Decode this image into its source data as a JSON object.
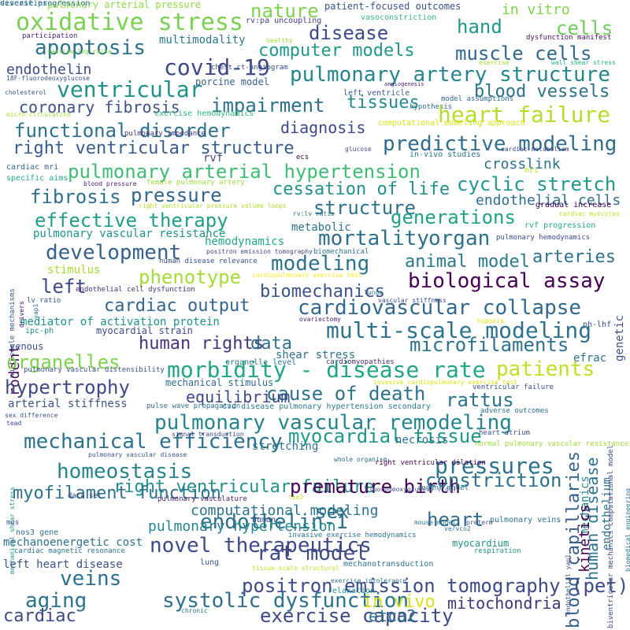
{
  "words": [
    {
      "text": "pulmonary arterial pressure",
      "color": "#90d743"
    },
    {
      "text": "nature",
      "color": "#7fd34e"
    },
    {
      "text": "patient-focused outcomes",
      "color": "#3b528b"
    },
    {
      "text": "in vitro",
      "color": "#7fd34e"
    },
    {
      "text": "oxidative stress",
      "color": "#7ad151"
    },
    {
      "text": "disease",
      "color": "#3e4989"
    },
    {
      "text": "hand",
      "color": "#1f978b"
    },
    {
      "text": "cells",
      "color": "#6ccd5a"
    },
    {
      "text": "rv:pa uncoupling",
      "color": "#453882"
    },
    {
      "text": "vasoconstriction",
      "color": "#35b779"
    },
    {
      "text": "participation",
      "color": "#481f70"
    },
    {
      "text": "healthy",
      "color": "#a2da37"
    },
    {
      "text": "dysfunction manifest",
      "color": "#470e61"
    },
    {
      "text": "multimodality",
      "color": "#2a788e"
    },
    {
      "text": "apoptosis",
      "color": "#2c728e"
    },
    {
      "text": "computer models",
      "color": "#1f988b"
    },
    {
      "text": "muscle cells",
      "color": "#31688e"
    },
    {
      "text": "passive leg raise",
      "color": "#86d549"
    },
    {
      "text": "exercise",
      "color": "#a5db36"
    },
    {
      "text": "wall shear stress",
      "color": "#26ad81"
    },
    {
      "text": "endothelin",
      "color": "#3e4989"
    },
    {
      "text": "covid-19",
      "color": "#3e4989"
    },
    {
      "text": "pulmonary artery structure",
      "color": "#25858e"
    },
    {
      "text": "18F-fluorodeoxyglucose",
      "color": "#3b528b"
    },
    {
      "text": "chest ct-angiogram",
      "color": "#3e4989"
    },
    {
      "text": "angiogenesis",
      "color": "#482173"
    },
    {
      "text": "ventricular",
      "color": "#21918c"
    },
    {
      "text": "porcine model",
      "color": "#355f8d"
    },
    {
      "text": "cholesterol",
      "color": "#3b528b"
    },
    {
      "text": "left ventricle",
      "color": "#38598c"
    },
    {
      "text": "blood vessels",
      "color": "#2c728e"
    },
    {
      "text": "impairment",
      "color": "#2c728e"
    },
    {
      "text": "tissues",
      "color": "#23898e"
    },
    {
      "text": "model assumptions",
      "color": "#31688e"
    },
    {
      "text": "coronary fibrosis",
      "color": "#3b528b"
    },
    {
      "text": "hypothesis",
      "color": "#2c728e"
    },
    {
      "text": "heart failure",
      "color": "#b5de2b"
    },
    {
      "text": "micro-circulation",
      "color": "#a5db36"
    },
    {
      "text": "exercise hemodynamics",
      "color": "#31b57b"
    },
    {
      "text": "diagnosis",
      "color": "#3f4788"
    },
    {
      "text": "computational modeling approach",
      "color": "#d8e219"
    },
    {
      "text": "functional disorder",
      "color": "#2d718e"
    },
    {
      "text": "predictive modeling",
      "color": "#2f6c8e"
    },
    {
      "text": "pulmonary impedance",
      "color": "#46327e"
    },
    {
      "text": "right ventricular structure",
      "color": "#365c8d"
    },
    {
      "text": "glucose",
      "color": "#3e4989"
    },
    {
      "text": "cardiac metabolism",
      "color": "#3f4788"
    },
    {
      "text": "in-vivo studies",
      "color": "#2c728e"
    },
    {
      "text": "ecs",
      "color": "#440154"
    },
    {
      "text": "rvf",
      "color": "#3f4788"
    },
    {
      "text": "crosslink",
      "color": "#2c728e"
    },
    {
      "text": "cardiac mri",
      "color": "#33638d"
    },
    {
      "text": "pulmonary arterial hypertension",
      "color": "#3dbc74"
    },
    {
      "text": "mri",
      "color": "#b8de29"
    },
    {
      "text": "specific aims",
      "color": "#22a884"
    },
    {
      "text": "blood pressure",
      "color": "#481f70"
    },
    {
      "text": "female pulmonary artery",
      "color": "#9bd93c"
    },
    {
      "text": "cyclic stretch",
      "color": "#1f988b"
    },
    {
      "text": "fibrosis",
      "color": "#2c728e"
    },
    {
      "text": "pressure",
      "color": "#32658e"
    },
    {
      "text": "cessation of life",
      "color": "#21918c"
    },
    {
      "text": "endothelial cells",
      "color": "#2e6e8e"
    },
    {
      "text": "gradual increase",
      "color": "#440154"
    },
    {
      "text": "structure",
      "color": "#2c728e"
    },
    {
      "text": "right ventricular pressure volume loops",
      "color": "#b0dd2f"
    },
    {
      "text": "cardiac myocytes",
      "color": "#bddf26"
    },
    {
      "text": "generations",
      "color": "#1fa188"
    },
    {
      "text": "effective therapy",
      "color": "#1f9e89"
    },
    {
      "text": "rv:lv ratio",
      "color": "#2c728e"
    },
    {
      "text": "rvf progression",
      "color": "#22a884"
    },
    {
      "text": "metabolic",
      "color": "#2c728e"
    },
    {
      "text": "pulmonary vascular resistance",
      "color": "#21918c"
    },
    {
      "text": "pulmonary hemodynamics",
      "color": "#3e4989"
    },
    {
      "text": "mortality",
      "color": "#2e6e8e"
    },
    {
      "text": "organ",
      "color": "#2c728e"
    },
    {
      "text": "multiscale mechanisms",
      "color": "#38598c"
    },
    {
      "text": "development",
      "color": "#355f8d"
    },
    {
      "text": "hemodynamics",
      "color": "#22a884"
    },
    {
      "text": "positron emission tomography",
      "color": "#3f4788"
    },
    {
      "text": "drivers",
      "color": "#440154"
    },
    {
      "text": "biomechanical",
      "color": "#2e6e8e"
    },
    {
      "text": "arteries",
      "color": "#2c728e"
    },
    {
      "text": "human disease relevance",
      "color": "#3b528b"
    },
    {
      "text": "modeling",
      "color": "#2c728e"
    },
    {
      "text": "animal model",
      "color": "#2a788e"
    },
    {
      "text": "stimulus",
      "color": "#a8db34"
    },
    {
      "text": "cardiopulmonary exercise test",
      "color": "#fde725"
    },
    {
      "text": "phenotype",
      "color": "#a5db36"
    },
    {
      "text": "biological assay",
      "color": "#440154"
    },
    {
      "text": "yap1",
      "color": "#2e6e8e"
    },
    {
      "text": "left",
      "color": "#3e4989"
    },
    {
      "text": "biomechanics",
      "color": "#3b528b"
    },
    {
      "text": "endothelial cell dysfunction",
      "color": "#46327e"
    },
    {
      "text": "lungs",
      "color": "#2c728e"
    },
    {
      "text": "vascular stiffness",
      "color": "#3e4989"
    },
    {
      "text": "lv ratio",
      "color": "#3b528b"
    },
    {
      "text": "cardiac output",
      "color": "#32658e"
    },
    {
      "text": "cardiovascular collapse",
      "color": "#31688e"
    },
    {
      "text": "genetic",
      "color": "#3b528b"
    },
    {
      "text": "mediator of activation protein",
      "color": "#21918c"
    },
    {
      "text": "ovariectomy",
      "color": "#482173"
    },
    {
      "text": "hypoxia",
      "color": "#dfe318"
    },
    {
      "text": "ph-lhf",
      "color": "#3e4989"
    },
    {
      "text": "ipc-ph",
      "color": "#228c8d"
    },
    {
      "text": "multi-scale modeling",
      "color": "#2c728e"
    },
    {
      "text": "rodent",
      "color": "#470e61"
    },
    {
      "text": "myocardial strain",
      "color": "#3e4989"
    },
    {
      "text": "venous",
      "color": "#3b528b"
    },
    {
      "text": "human rights",
      "color": "#46327e"
    },
    {
      "text": "data",
      "color": "#2c728e"
    },
    {
      "text": "microfilaments",
      "color": "#2c728e"
    },
    {
      "text": "organelles",
      "color": "#7fd34e"
    },
    {
      "text": "shear stress",
      "color": "#2c728e"
    },
    {
      "text": "organelle level",
      "color": "#2a788e"
    },
    {
      "text": "cardiomyopathies",
      "color": "#472d7b"
    },
    {
      "text": "efrac",
      "color": "#2c728e"
    },
    {
      "text": "morbidity - disease rate",
      "color": "#21a685"
    },
    {
      "text": "patients",
      "color": "#c2df23"
    },
    {
      "text": "pulmonary vascular distensibility",
      "color": "#3b528b"
    },
    {
      "text": "mechanical stimulus",
      "color": "#31688e"
    },
    {
      "text": "invasive cardiopulmonary exercise test",
      "color": "#d8e219"
    },
    {
      "text": "hypertrophy",
      "color": "#3e4989"
    },
    {
      "text": "cause of death",
      "color": "#2c728e"
    },
    {
      "text": "ventricular failure",
      "color": "#3b528b"
    },
    {
      "text": "equilibrium",
      "color": "#3e4989"
    },
    {
      "text": "rattus",
      "color": "#2c728e"
    },
    {
      "text": "biventricular mechanics computational model",
      "color": "#3e4989"
    },
    {
      "text": "arterial stiffness",
      "color": "#3b528b"
    },
    {
      "text": "pulse wave propagation",
      "color": "#2c728e"
    },
    {
      "text": "cvd disease pulmonary hypertension secondary",
      "color": "#2a788e"
    },
    {
      "text": "sex difference",
      "color": "#3b528b"
    },
    {
      "text": "biomedical engineering",
      "color": "#2c728e"
    },
    {
      "text": "adverse outcomes",
      "color": "#2c728e"
    },
    {
      "text": "mechanical shear stress",
      "color": "#21918c"
    },
    {
      "text": "tead",
      "color": "#3e4989"
    },
    {
      "text": "pulmonary vascular remodeling",
      "color": "#25858e"
    },
    {
      "text": "blood capillaries",
      "color": "#355f8d"
    },
    {
      "text": "human disease",
      "color": "#2c728e"
    },
    {
      "text": "mechanics",
      "color": "#25858e"
    },
    {
      "text": "endothelium",
      "color": "#2c728e"
    },
    {
      "text": "heart atrium",
      "color": "#3b528b"
    },
    {
      "text": "mechanical efficiency",
      "color": "#2c728e"
    },
    {
      "text": "myocardial tissue",
      "color": "#1f978b"
    },
    {
      "text": "necrosis",
      "color": "#2c728e"
    },
    {
      "text": "stretching",
      "color": "#2c728e"
    },
    {
      "text": "signal transduction",
      "color": "#3e4989"
    },
    {
      "text": "pulmonary vascular disease",
      "color": "#3b528b"
    },
    {
      "text": "normal pulmonary vascular resistance",
      "color": "#a0da39"
    },
    {
      "text": "pressures",
      "color": "#2c728e"
    },
    {
      "text": "kinetics",
      "color": "#440154"
    },
    {
      "text": "homeostasis",
      "color": "#25858e"
    },
    {
      "text": "right ventricular failure",
      "color": "#21918c"
    },
    {
      "text": "whole organism",
      "color": "#2c728e"
    },
    {
      "text": "right ventricular dilation",
      "color": "#440154"
    },
    {
      "text": "premature birth",
      "color": "#440154"
    },
    {
      "text": "constriction",
      "color": "#2c728e"
    },
    {
      "text": "rodent model",
      "color": "#2c728e"
    },
    {
      "text": "myofilament function",
      "color": "#2c728e"
    },
    {
      "text": "data set",
      "color": "#3e4989"
    },
    {
      "text": "pulmonary vasculature",
      "color": "#481f70"
    },
    {
      "text": "fluorodeoxyglucose (fdg)",
      "color": "#3b528b"
    },
    {
      "text": "tie2",
      "color": "#c8e020"
    },
    {
      "text": "computational modeling",
      "color": "#2c728e"
    },
    {
      "text": "endothelin-1",
      "color": "#2c728e"
    },
    {
      "text": "pulmonary hypertension",
      "color": "#25858e"
    },
    {
      "text": "sex",
      "color": "#2c728e"
    },
    {
      "text": "heart",
      "color": "#31688e"
    },
    {
      "text": "human",
      "color": "#3e4989"
    },
    {
      "text": "pulmonary veins",
      "color": "#2c728e"
    },
    {
      "text": "nos3 gene",
      "color": "#2c728e"
    },
    {
      "text": "mus",
      "color": "#3b528b"
    },
    {
      "text": "invasive exercise hemodynamics",
      "color": "#2c728e"
    },
    {
      "text": "preterm",
      "color": "#3b528b"
    },
    {
      "text": "mechanoenergetic cost",
      "color": "#2c728e"
    },
    {
      "text": "novel therapeutics",
      "color": "#3e4989"
    },
    {
      "text": "myocardium",
      "color": "#21918c"
    },
    {
      "text": "mouse model",
      "color": "#2c728e"
    },
    {
      "text": "ve/vco2",
      "color": "#2c728e"
    },
    {
      "text": "cardiac magnetic resonance",
      "color": "#2c728e"
    },
    {
      "text": "rat model",
      "color": "#3e4989"
    },
    {
      "text": "respiration",
      "color": "#21918c"
    },
    {
      "text": "endothelial yap1",
      "color": "#3e4989"
    },
    {
      "text": "left heart disease",
      "color": "#3b528b"
    },
    {
      "text": "lung",
      "color": "#3e4989"
    },
    {
      "text": "mechanotransduction",
      "color": "#2c728e"
    },
    {
      "text": "tissue-scale structural",
      "color": "#bddf26"
    },
    {
      "text": "veins",
      "color": "#2c728e"
    },
    {
      "text": "positron emission tomography (pet)",
      "color": "#3e4989"
    },
    {
      "text": "exercise intolerance",
      "color": "#2c728e"
    },
    {
      "text": "relaxation",
      "color": "#21918c"
    },
    {
      "text": "aging",
      "color": "#2c728e"
    },
    {
      "text": "systolic dysfunction",
      "color": "#2c728e"
    },
    {
      "text": "in vivo",
      "color": "#d8e219"
    },
    {
      "text": "mitochondria",
      "color": "#46327e"
    },
    {
      "text": "cardiac",
      "color": "#3e4989"
    },
    {
      "text": "chronic",
      "color": "#2c728e"
    },
    {
      "text": "exercise capacity",
      "color": "#3e4989"
    },
    {
      "text": "etco2",
      "color": "#2c728e"
    },
    {
      "text": "severities",
      "color": "#2c728e"
    },
    {
      "text": "disease progression",
      "color": "#2c728e"
    }
  ]
}
